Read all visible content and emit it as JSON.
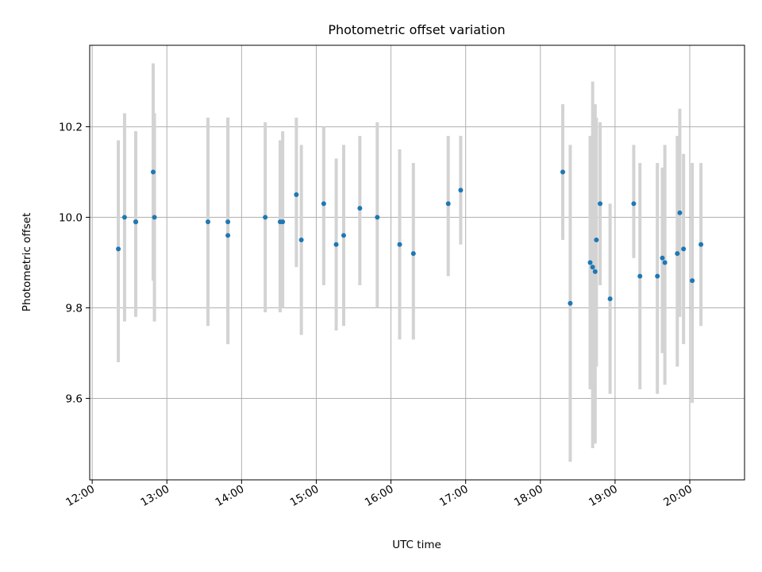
{
  "chart_data": {
    "type": "scatter",
    "title": "Photometric offset variation",
    "xlabel": "UTC time",
    "ylabel": "Photometric offset",
    "xlim": [
      "11:58",
      "20:44"
    ],
    "ylim": [
      9.42,
      10.38
    ],
    "x_ticks": [
      "12:00",
      "13:00",
      "14:00",
      "15:00",
      "16:00",
      "17:00",
      "18:00",
      "19:00",
      "20:00"
    ],
    "y_ticks": [
      "9.6",
      "9.8",
      "10.0",
      "10.2"
    ],
    "grid": true,
    "marker_color": "#1f77b4",
    "errorbar_color": "#d3d3d3",
    "series": [
      {
        "x": [
          "12:21",
          "12:26",
          "12:35",
          "12:35",
          "12:49",
          "12:50",
          "13:33",
          "13:49",
          "13:49",
          "14:19",
          "14:31",
          "14:33",
          "14:44",
          "14:48",
          "15:06",
          "15:16",
          "15:22",
          "15:35",
          "15:49",
          "16:07",
          "16:18",
          "16:46",
          "16:56",
          "18:18",
          "18:24",
          "18:40",
          "18:42",
          "18:44",
          "18:45",
          "18:48",
          "18:56",
          "19:15",
          "19:20",
          "19:34",
          "19:38",
          "19:40",
          "19:50",
          "19:52",
          "19:55",
          "20:02",
          "20:09"
        ],
        "y": [
          9.93,
          10.0,
          9.99,
          9.99,
          10.1,
          10.0,
          9.99,
          9.96,
          9.99,
          10.0,
          9.99,
          9.99,
          10.05,
          9.95,
          10.03,
          9.94,
          9.96,
          10.02,
          10.0,
          9.94,
          9.92,
          10.03,
          10.06,
          10.1,
          9.81,
          9.9,
          9.89,
          9.88,
          9.95,
          10.03,
          9.82,
          10.03,
          9.87,
          9.87,
          9.91,
          9.9,
          9.92,
          10.01,
          9.93,
          9.86,
          9.94
        ],
        "yerr_low": [
          9.68,
          9.77,
          9.78,
          9.79,
          9.86,
          9.77,
          9.76,
          9.72,
          9.72,
          9.79,
          9.79,
          9.8,
          9.89,
          9.74,
          9.85,
          9.75,
          9.76,
          9.85,
          9.8,
          9.73,
          9.73,
          9.87,
          9.94,
          9.95,
          9.46,
          9.62,
          9.49,
          9.5,
          9.67,
          9.85,
          9.61,
          9.91,
          9.62,
          9.61,
          9.7,
          9.63,
          9.67,
          9.78,
          9.72,
          9.59,
          9.76
        ],
        "yerr_high": [
          10.17,
          10.23,
          10.19,
          10.19,
          10.34,
          10.23,
          10.22,
          10.22,
          10.22,
          10.21,
          10.17,
          10.19,
          10.22,
          10.16,
          10.2,
          10.13,
          10.16,
          10.18,
          10.21,
          10.15,
          10.12,
          10.18,
          10.18,
          10.25,
          10.16,
          10.18,
          10.3,
          10.25,
          10.22,
          10.21,
          10.03,
          10.16,
          10.12,
          10.12,
          10.11,
          10.16,
          10.18,
          10.24,
          10.14,
          10.12,
          10.12
        ]
      }
    ]
  }
}
